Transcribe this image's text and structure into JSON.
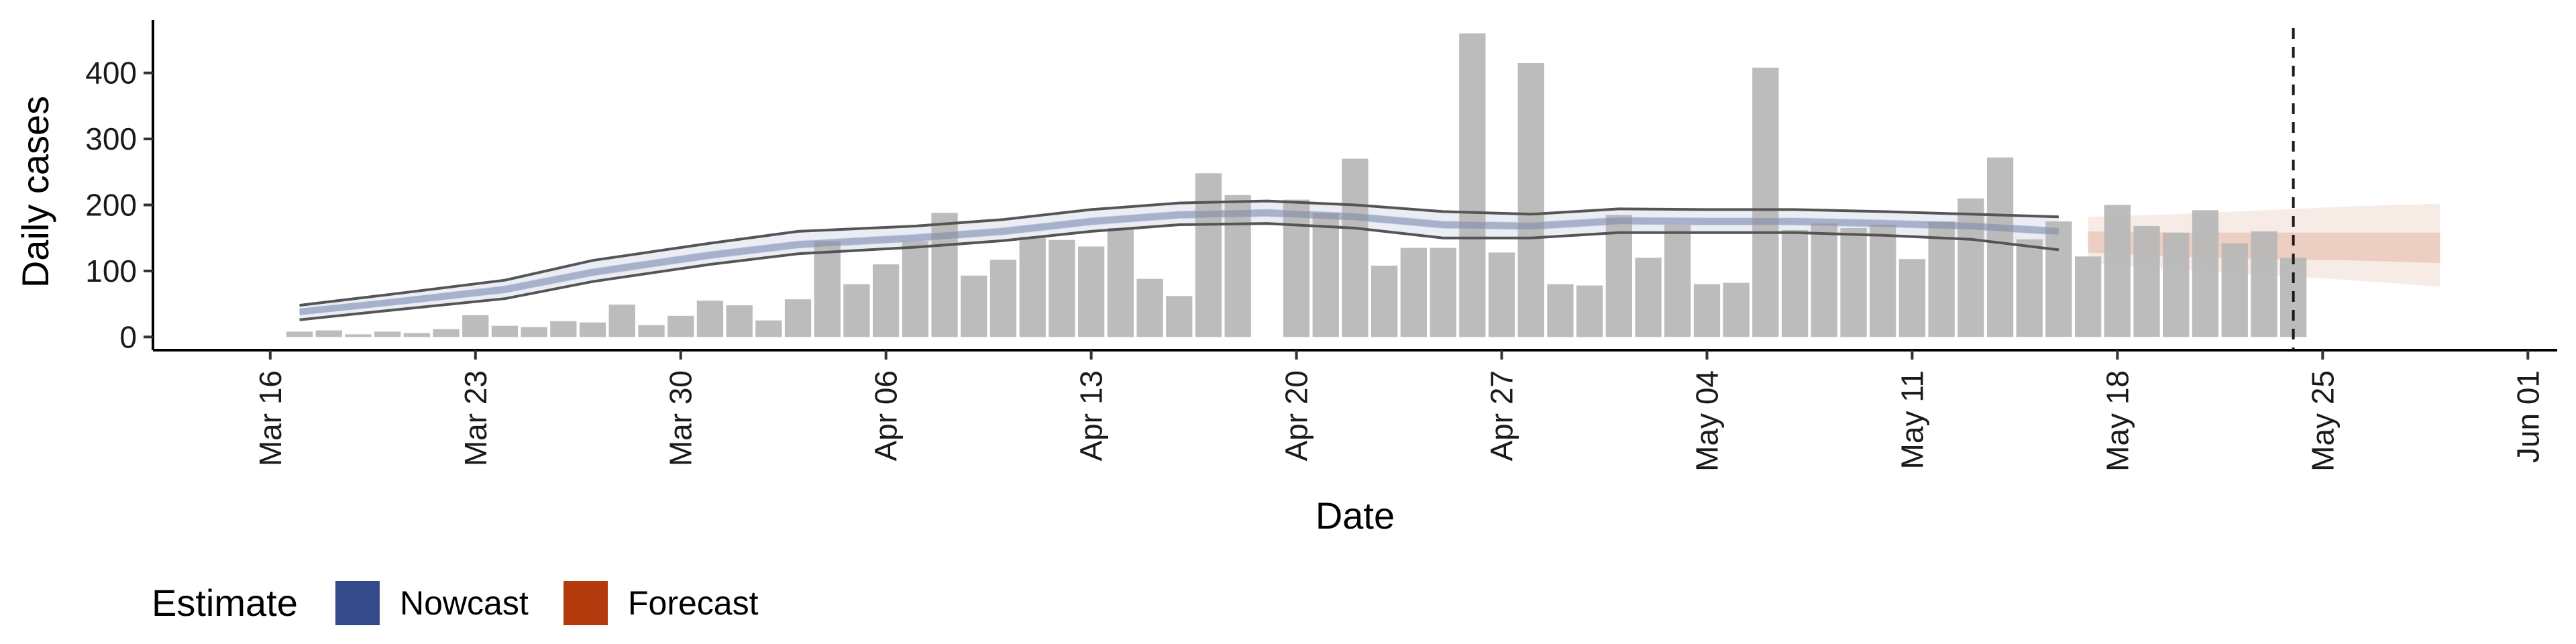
{
  "chart_data": {
    "type": "bar",
    "xlabel": "Date",
    "ylabel": "Daily cases",
    "xlim": [
      "2020-03-12",
      "2020-06-02"
    ],
    "ylim": [
      -20,
      480
    ],
    "y_ticks": [
      0,
      100,
      200,
      300,
      400
    ],
    "x_ticks": [
      "2020-03-16",
      "2020-03-23",
      "2020-03-30",
      "2020-04-06",
      "2020-04-13",
      "2020-04-20",
      "2020-04-27",
      "2020-05-04",
      "2020-05-11",
      "2020-05-18",
      "2020-05-25",
      "2020-06-01"
    ],
    "x_tick_labels": [
      "Mar 16",
      "Mar 23",
      "Mar 30",
      "Apr 06",
      "Apr 13",
      "Apr 20",
      "Apr 27",
      "May 04",
      "May 11",
      "May 18",
      "May 25",
      "Jun 01"
    ],
    "bar_color": "#b8b8b8",
    "reported_cases": {
      "dates": [
        "2020-03-17",
        "2020-03-18",
        "2020-03-19",
        "2020-03-20",
        "2020-03-21",
        "2020-03-22",
        "2020-03-23",
        "2020-03-24",
        "2020-03-25",
        "2020-03-26",
        "2020-03-27",
        "2020-03-28",
        "2020-03-29",
        "2020-03-30",
        "2020-03-31",
        "2020-04-01",
        "2020-04-02",
        "2020-04-03",
        "2020-04-04",
        "2020-04-05",
        "2020-04-06",
        "2020-04-07",
        "2020-04-08",
        "2020-04-09",
        "2020-04-10",
        "2020-04-11",
        "2020-04-12",
        "2020-04-13",
        "2020-04-14",
        "2020-04-15",
        "2020-04-16",
        "2020-04-17",
        "2020-04-18",
        "2020-04-19",
        "2020-04-20",
        "2020-04-21",
        "2020-04-22",
        "2020-04-23",
        "2020-04-24",
        "2020-04-25",
        "2020-04-26",
        "2020-04-27",
        "2020-04-28",
        "2020-04-29",
        "2020-04-30",
        "2020-05-01",
        "2020-05-02",
        "2020-05-03",
        "2020-05-04",
        "2020-05-05",
        "2020-05-06",
        "2020-05-07",
        "2020-05-08",
        "2020-05-09",
        "2020-05-10",
        "2020-05-11",
        "2020-05-12",
        "2020-05-13",
        "2020-05-14",
        "2020-05-15",
        "2020-05-16",
        "2020-05-17",
        "2020-05-18",
        "2020-05-19",
        "2020-05-20",
        "2020-05-21",
        "2020-05-22",
        "2020-05-23",
        "2020-05-24"
      ],
      "values": [
        8,
        10,
        4,
        8,
        6,
        12,
        33,
        17,
        15,
        24,
        22,
        49,
        18,
        32,
        55,
        48,
        25,
        57,
        145,
        80,
        110,
        145,
        188,
        93,
        117,
        152,
        147,
        137,
        165,
        88,
        62,
        248,
        215,
        0,
        208,
        188,
        270,
        108,
        135,
        135,
        460,
        128,
        415,
        80,
        78,
        185,
        120,
        170,
        80,
        82,
        408,
        162,
        172,
        165,
        170,
        118,
        175,
        210,
        272,
        148,
        175,
        122,
        200,
        168,
        158,
        192,
        142,
        160,
        120
      ]
    },
    "series": [
      {
        "name": "Nowcast",
        "color": "#344a8a",
        "dates": [
          "2020-03-17",
          "2020-03-20",
          "2020-03-24",
          "2020-03-27",
          "2020-03-31",
          "2020-04-03",
          "2020-04-07",
          "2020-04-10",
          "2020-04-13",
          "2020-04-16",
          "2020-04-19",
          "2020-04-22",
          "2020-04-25",
          "2020-04-28",
          "2020-05-01",
          "2020-05-04",
          "2020-05-07",
          "2020-05-10",
          "2020-05-13",
          "2020-05-16"
        ],
        "median": [
          38,
          52,
          72,
          98,
          124,
          140,
          150,
          160,
          175,
          185,
          188,
          182,
          170,
          168,
          176,
          175,
          175,
          172,
          168,
          160
        ],
        "inner_lower": [
          33,
          47,
          66,
          92,
          118,
          134,
          144,
          154,
          169,
          179,
          182,
          176,
          164,
          162,
          170,
          169,
          169,
          166,
          162,
          154
        ],
        "inner_upper": [
          43,
          57,
          78,
          104,
          130,
          146,
          156,
          166,
          181,
          191,
          194,
          188,
          176,
          174,
          182,
          181,
          181,
          178,
          174,
          166
        ],
        "outer_lower": [
          26,
          40,
          58,
          84,
          110,
          126,
          136,
          146,
          160,
          170,
          172,
          165,
          150,
          150,
          158,
          158,
          158,
          154,
          148,
          132
        ],
        "outer_upper": [
          48,
          64,
          86,
          116,
          142,
          160,
          168,
          178,
          193,
          203,
          206,
          200,
          190,
          186,
          194,
          193,
          193,
          190,
          186,
          182
        ]
      },
      {
        "name": "Forecast",
        "color": "#b33a0c",
        "dates": [
          "2020-05-17",
          "2020-05-20",
          "2020-05-23",
          "2020-05-26",
          "2020-05-29"
        ],
        "inner_lower": [
          128,
          122,
          118,
          116,
          112
        ],
        "inner_upper": [
          160,
          158,
          158,
          158,
          158
        ],
        "outer_lower": [
          112,
          102,
          94,
          86,
          76
        ],
        "outer_upper": [
          182,
          186,
          192,
          198,
          202
        ]
      }
    ],
    "vline_date": "2020-05-24",
    "legend": {
      "title": "Estimate",
      "position": "bottom-left",
      "entries": [
        "Nowcast",
        "Forecast"
      ]
    },
    "grid": false
  }
}
